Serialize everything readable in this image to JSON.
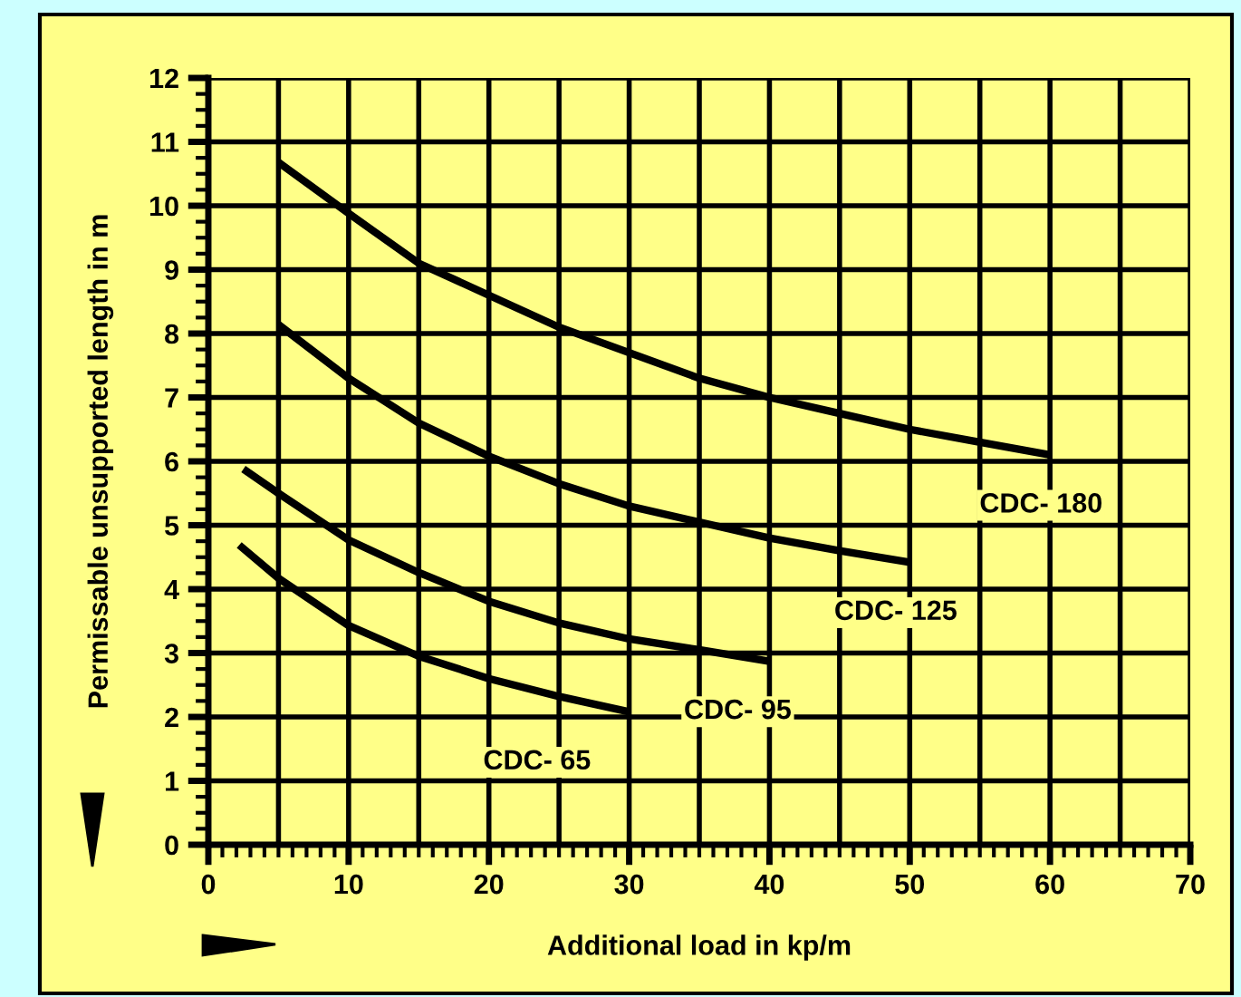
{
  "chart_data": {
    "type": "line",
    "xlabel": "Additional load in kp/m",
    "ylabel": "Permissable unsupported length in m",
    "xlim": [
      0,
      70
    ],
    "xticks": [
      0,
      10,
      20,
      30,
      40,
      50,
      60,
      70
    ],
    "ylim": [
      0,
      12
    ],
    "yticks": [
      0,
      1,
      2,
      3,
      4,
      5,
      6,
      7,
      8,
      9,
      10,
      11,
      12
    ],
    "grid": true,
    "legend": false,
    "marker": "none",
    "line_style": "solid",
    "series": [
      {
        "name": "CDC- 180",
        "color": "#000000",
        "x": [
          5,
          10,
          15,
          20,
          25,
          30,
          35,
          40,
          45,
          50,
          55,
          60
        ],
        "values": [
          10.68,
          9.88,
          9.1,
          8.6,
          8.1,
          7.7,
          7.3,
          7.0,
          6.75,
          6.5,
          6.3,
          6.1
        ]
      },
      {
        "name": "CDC- 125",
        "color": "#000000",
        "x": [
          5,
          10,
          15,
          20,
          25,
          30,
          35,
          40,
          45,
          50
        ],
        "values": [
          8.14,
          7.3,
          6.6,
          6.08,
          5.65,
          5.3,
          5.05,
          4.8,
          4.6,
          4.42
        ]
      },
      {
        "name": "CDC- 95",
        "color": "#000000",
        "x": [
          2.5,
          5,
          10,
          15,
          20,
          25,
          30,
          35,
          40
        ],
        "values": [
          5.88,
          5.5,
          4.77,
          4.26,
          3.81,
          3.47,
          3.22,
          3.05,
          2.87
        ]
      },
      {
        "name": "CDC- 65",
        "color": "#000000",
        "x": [
          2.2,
          5,
          10,
          15,
          20,
          25,
          30
        ],
        "values": [
          4.69,
          4.17,
          3.43,
          2.95,
          2.6,
          2.32,
          2.08
        ]
      }
    ]
  }
}
